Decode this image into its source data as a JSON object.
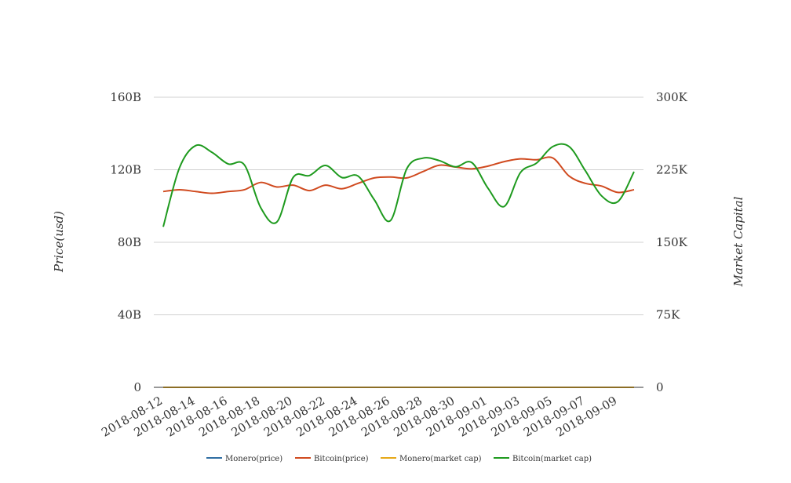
{
  "chart_data": {
    "type": "line",
    "x": [
      "2018-08-12",
      "2018-08-13",
      "2018-08-14",
      "2018-08-15",
      "2018-08-16",
      "2018-08-17",
      "2018-08-18",
      "2018-08-19",
      "2018-08-20",
      "2018-08-21",
      "2018-08-22",
      "2018-08-23",
      "2018-08-24",
      "2018-08-25",
      "2018-08-26",
      "2018-08-27",
      "2018-08-28",
      "2018-08-29",
      "2018-08-30",
      "2018-08-31",
      "2018-09-01",
      "2018-09-02",
      "2018-09-03",
      "2018-09-04",
      "2018-09-05",
      "2018-09-06",
      "2018-09-07",
      "2018-09-08",
      "2018-09-09",
      "2018-09-10"
    ],
    "x_tick_labels": [
      "2018-08-12",
      "2018-08-14",
      "2018-08-16",
      "2018-08-18",
      "2018-08-20",
      "2018-08-22",
      "2018-08-24",
      "2018-08-26",
      "2018-08-28",
      "2018-08-30",
      "2018-09-01",
      "2018-09-03",
      "2018-09-05",
      "2018-09-07",
      "2018-09-09"
    ],
    "y_left": {
      "label": "Price(usd)",
      "ticks": [
        "0",
        "40B",
        "80B",
        "120B",
        "160B"
      ],
      "range": [
        0,
        160000000000
      ]
    },
    "y_right": {
      "label": "Market Capital",
      "ticks": [
        "0",
        "75K",
        "150K",
        "225K",
        "300K"
      ],
      "range": [
        0,
        300000
      ]
    },
    "series": [
      {
        "name": "Monero(price)",
        "axis": "left",
        "color": "#2f6ea3",
        "values": [
          0,
          0,
          0,
          0,
          0,
          0,
          0,
          0,
          0,
          0,
          0,
          0,
          0,
          0,
          0,
          0,
          0,
          0,
          0,
          0,
          0,
          0,
          0,
          0,
          0,
          0,
          0,
          0,
          0,
          0
        ]
      },
      {
        "name": "Bitcoin(price)",
        "axis": "left",
        "color": "#d04a1f",
        "values": [
          108000000000.0,
          109000000000.0,
          108000000000.0,
          107000000000.0,
          108000000000.0,
          109000000000.0,
          113000000000.0,
          110500000000.0,
          111500000000.0,
          108500000000.0,
          111500000000.0,
          109500000000.0,
          112500000000.0,
          115500000000.0,
          116000000000.0,
          115500000000.0,
          119000000000.0,
          122500000000.0,
          121500000000.0,
          120500000000.0,
          122000000000.0,
          124500000000.0,
          126000000000.0,
          125500000000.0,
          126500000000.0,
          116500000000.0,
          112500000000.0,
          111000000000.0,
          107500000000.0,
          109000000000.0
        ]
      },
      {
        "name": "Monero(market cap)",
        "axis": "left",
        "color": "#e6a817",
        "values": [
          0,
          0,
          0,
          0,
          0,
          0,
          0,
          0,
          0,
          0,
          0,
          0,
          0,
          0,
          0,
          0,
          0,
          0,
          0,
          0,
          0,
          0,
          0,
          0,
          0,
          0,
          0,
          0,
          0,
          0
        ]
      },
      {
        "name": "Bitcoin(market cap)",
        "axis": "right",
        "color": "#1e9a1e",
        "values": [
          166000,
          227000,
          250000,
          243000,
          231000,
          230000,
          186000,
          171000,
          217000,
          219000,
          229500,
          217000,
          218500,
          194000,
          172500,
          226000,
          237000,
          234500,
          228000,
          232500,
          206000,
          187000,
          222000,
          232000,
          249000,
          249000,
          224000,
          198000,
          192000,
          223000
        ]
      }
    ],
    "legend": {
      "position": "bottom",
      "entries": [
        "Monero(price)",
        "Bitcoin(price)",
        "Monero(market cap)",
        "Bitcoin(market cap)"
      ]
    },
    "grid": true
  }
}
